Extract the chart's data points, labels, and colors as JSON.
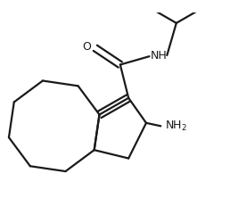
{
  "background_color": "#ffffff",
  "line_color": "#1a1a1a",
  "line_width": 1.6,
  "figsize": [
    2.58,
    2.5
  ],
  "dpi": 100
}
